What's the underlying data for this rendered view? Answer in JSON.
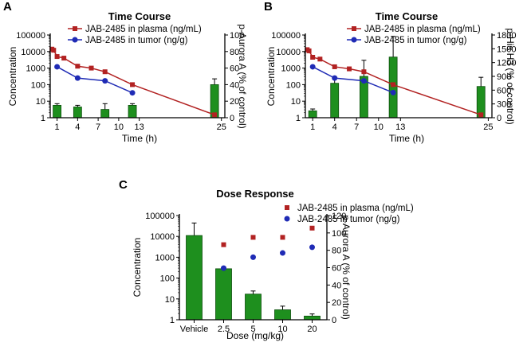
{
  "figure": {
    "colors": {
      "plasma": "#b22222",
      "tumor": "#1f2bb5",
      "bar": "#1e8f1e",
      "bar_edge": "#0b4d0b",
      "axis": "#000000"
    }
  },
  "chart_data": [
    {
      "panel": "A",
      "type": "bar+line",
      "title": "Time Course",
      "xlabel": "Time (h)",
      "ylabel_left": "Concentration",
      "ylabel_right": "p-Aurora A (% of control)",
      "x_ticks": [
        1,
        4,
        7,
        10,
        13,
        25
      ],
      "x_tick_labels": [
        "1",
        "4",
        "7",
        "10",
        "13",
        "25"
      ],
      "left_ticks": [
        1,
        10,
        100,
        1000,
        10000,
        100000
      ],
      "left_tick_labels": [
        "1",
        "10",
        "100",
        "1000",
        "10000",
        "100000"
      ],
      "left_ylim": [
        1,
        100000
      ],
      "right_ticks": [
        0,
        20,
        40,
        60,
        80,
        100
      ],
      "right_tick_labels": [
        "0",
        "20",
        "40",
        "60",
        "80",
        "100"
      ],
      "right_ylim": [
        0,
        100
      ],
      "legend": [
        "JAB-2485 in plasma (ng/mL)",
        "JAB-2485 in tumor (ng/g)"
      ],
      "series": [
        {
          "name": "JAB-2485 in plasma (ng/mL)",
          "marker": "square",
          "x": [
            0.25,
            0.5,
            1,
            2,
            4,
            6,
            8,
            12,
            24
          ],
          "y": [
            14000,
            12000,
            5000,
            4000,
            1300,
            1000,
            600,
            100,
            1.5
          ]
        },
        {
          "name": "JAB-2485 in tumor (ng/g)",
          "marker": "circle",
          "x": [
            1,
            4,
            8,
            12
          ],
          "y": [
            1200,
            250,
            170,
            32
          ]
        }
      ],
      "bars": {
        "axis": "right",
        "x": [
          1,
          4,
          8,
          12,
          24
        ],
        "values": [
          15,
          13,
          10,
          15,
          40
        ],
        "errors": [
          2,
          2,
          7,
          2,
          7
        ]
      }
    },
    {
      "panel": "B",
      "type": "bar+line",
      "title": "Time Course",
      "xlabel": "Time (h)",
      "ylabel_left": "Concentration",
      "ylabel_right": "p-His H3 (% of control)",
      "x_ticks": [
        1,
        4,
        7,
        10,
        13,
        25
      ],
      "x_tick_labels": [
        "1",
        "4",
        "7",
        "10",
        "13",
        "25"
      ],
      "left_ticks": [
        1,
        10,
        100,
        1000,
        10000,
        100000
      ],
      "left_tick_labels": [
        "1",
        "10",
        "100",
        "1000",
        "10000",
        "100000"
      ],
      "left_ylim": [
        1,
        100000
      ],
      "right_ticks": [
        0,
        300,
        600,
        900,
        1200,
        1500,
        1800
      ],
      "right_tick_labels": [
        "0",
        "300",
        "600",
        "900",
        "1200",
        "1500",
        "1800"
      ],
      "right_ylim": [
        0,
        1800
      ],
      "legend": [
        "JAB-2485 in plasma (ng/mL)",
        "JAB-2485 in tumor (ng/g)"
      ],
      "series": [
        {
          "name": "JAB-2485 in plasma (ng/mL)",
          "marker": "square",
          "x": [
            0.25,
            0.5,
            1,
            2,
            4,
            6,
            8,
            12,
            24
          ],
          "y": [
            13000,
            11000,
            4500,
            3500,
            1200,
            900,
            600,
            100,
            1.5
          ]
        },
        {
          "name": "JAB-2485 in tumor (ng/g)",
          "marker": "circle",
          "x": [
            1,
            4,
            8,
            12
          ],
          "y": [
            1200,
            250,
            170,
            33
          ]
        }
      ],
      "bars": {
        "axis": "right",
        "x": [
          1,
          4,
          8,
          12,
          24
        ],
        "values": [
          150,
          750,
          900,
          1320,
          680
        ],
        "errors": [
          40,
          100,
          350,
          450,
          200
        ]
      }
    },
    {
      "panel": "C",
      "type": "bar+scatter",
      "title": "Dose Response",
      "xlabel": "Dose (mg/kg)",
      "ylabel_left": "Concentration",
      "ylabel_right": "p-Aurora A (% of control)",
      "categories": [
        "Vehicle",
        "2.5",
        "5",
        "10",
        "20"
      ],
      "left_ticks": [
        1,
        10,
        100,
        1000,
        10000,
        100000
      ],
      "left_tick_labels": [
        "1",
        "10",
        "100",
        "1000",
        "10000",
        "100000"
      ],
      "left_ylim": [
        1,
        100000
      ],
      "right_ticks": [
        0,
        20,
        40,
        60,
        80,
        100,
        120
      ],
      "right_tick_labels": [
        "0",
        "20",
        "40",
        "60",
        "80",
        "100",
        "120"
      ],
      "right_ylim": [
        0,
        120
      ],
      "legend": [
        "JAB-2485 in plasma (ng/mL)",
        "JAB-2485 in tumor (ng/g)"
      ],
      "series": [
        {
          "name": "JAB-2485 in plasma (ng/mL)",
          "marker": "square",
          "categories": [
            "2.5",
            "5",
            "10",
            "20"
          ],
          "y": [
            4000,
            9000,
            9000,
            25000
          ]
        },
        {
          "name": "JAB-2485 in tumor (ng/g)",
          "marker": "circle",
          "categories": [
            "2.5",
            "5",
            "10",
            "20"
          ],
          "y": [
            300,
            1000,
            1600,
            3000
          ]
        }
      ],
      "bars": {
        "axis": "left",
        "categories": [
          "Vehicle",
          "2.5",
          "5",
          "10",
          "20"
        ],
        "values": [
          11000,
          280,
          17,
          3,
          1.5
        ],
        "errors": [
          33000,
          60,
          7,
          1.5,
          0.4
        ]
      }
    }
  ]
}
